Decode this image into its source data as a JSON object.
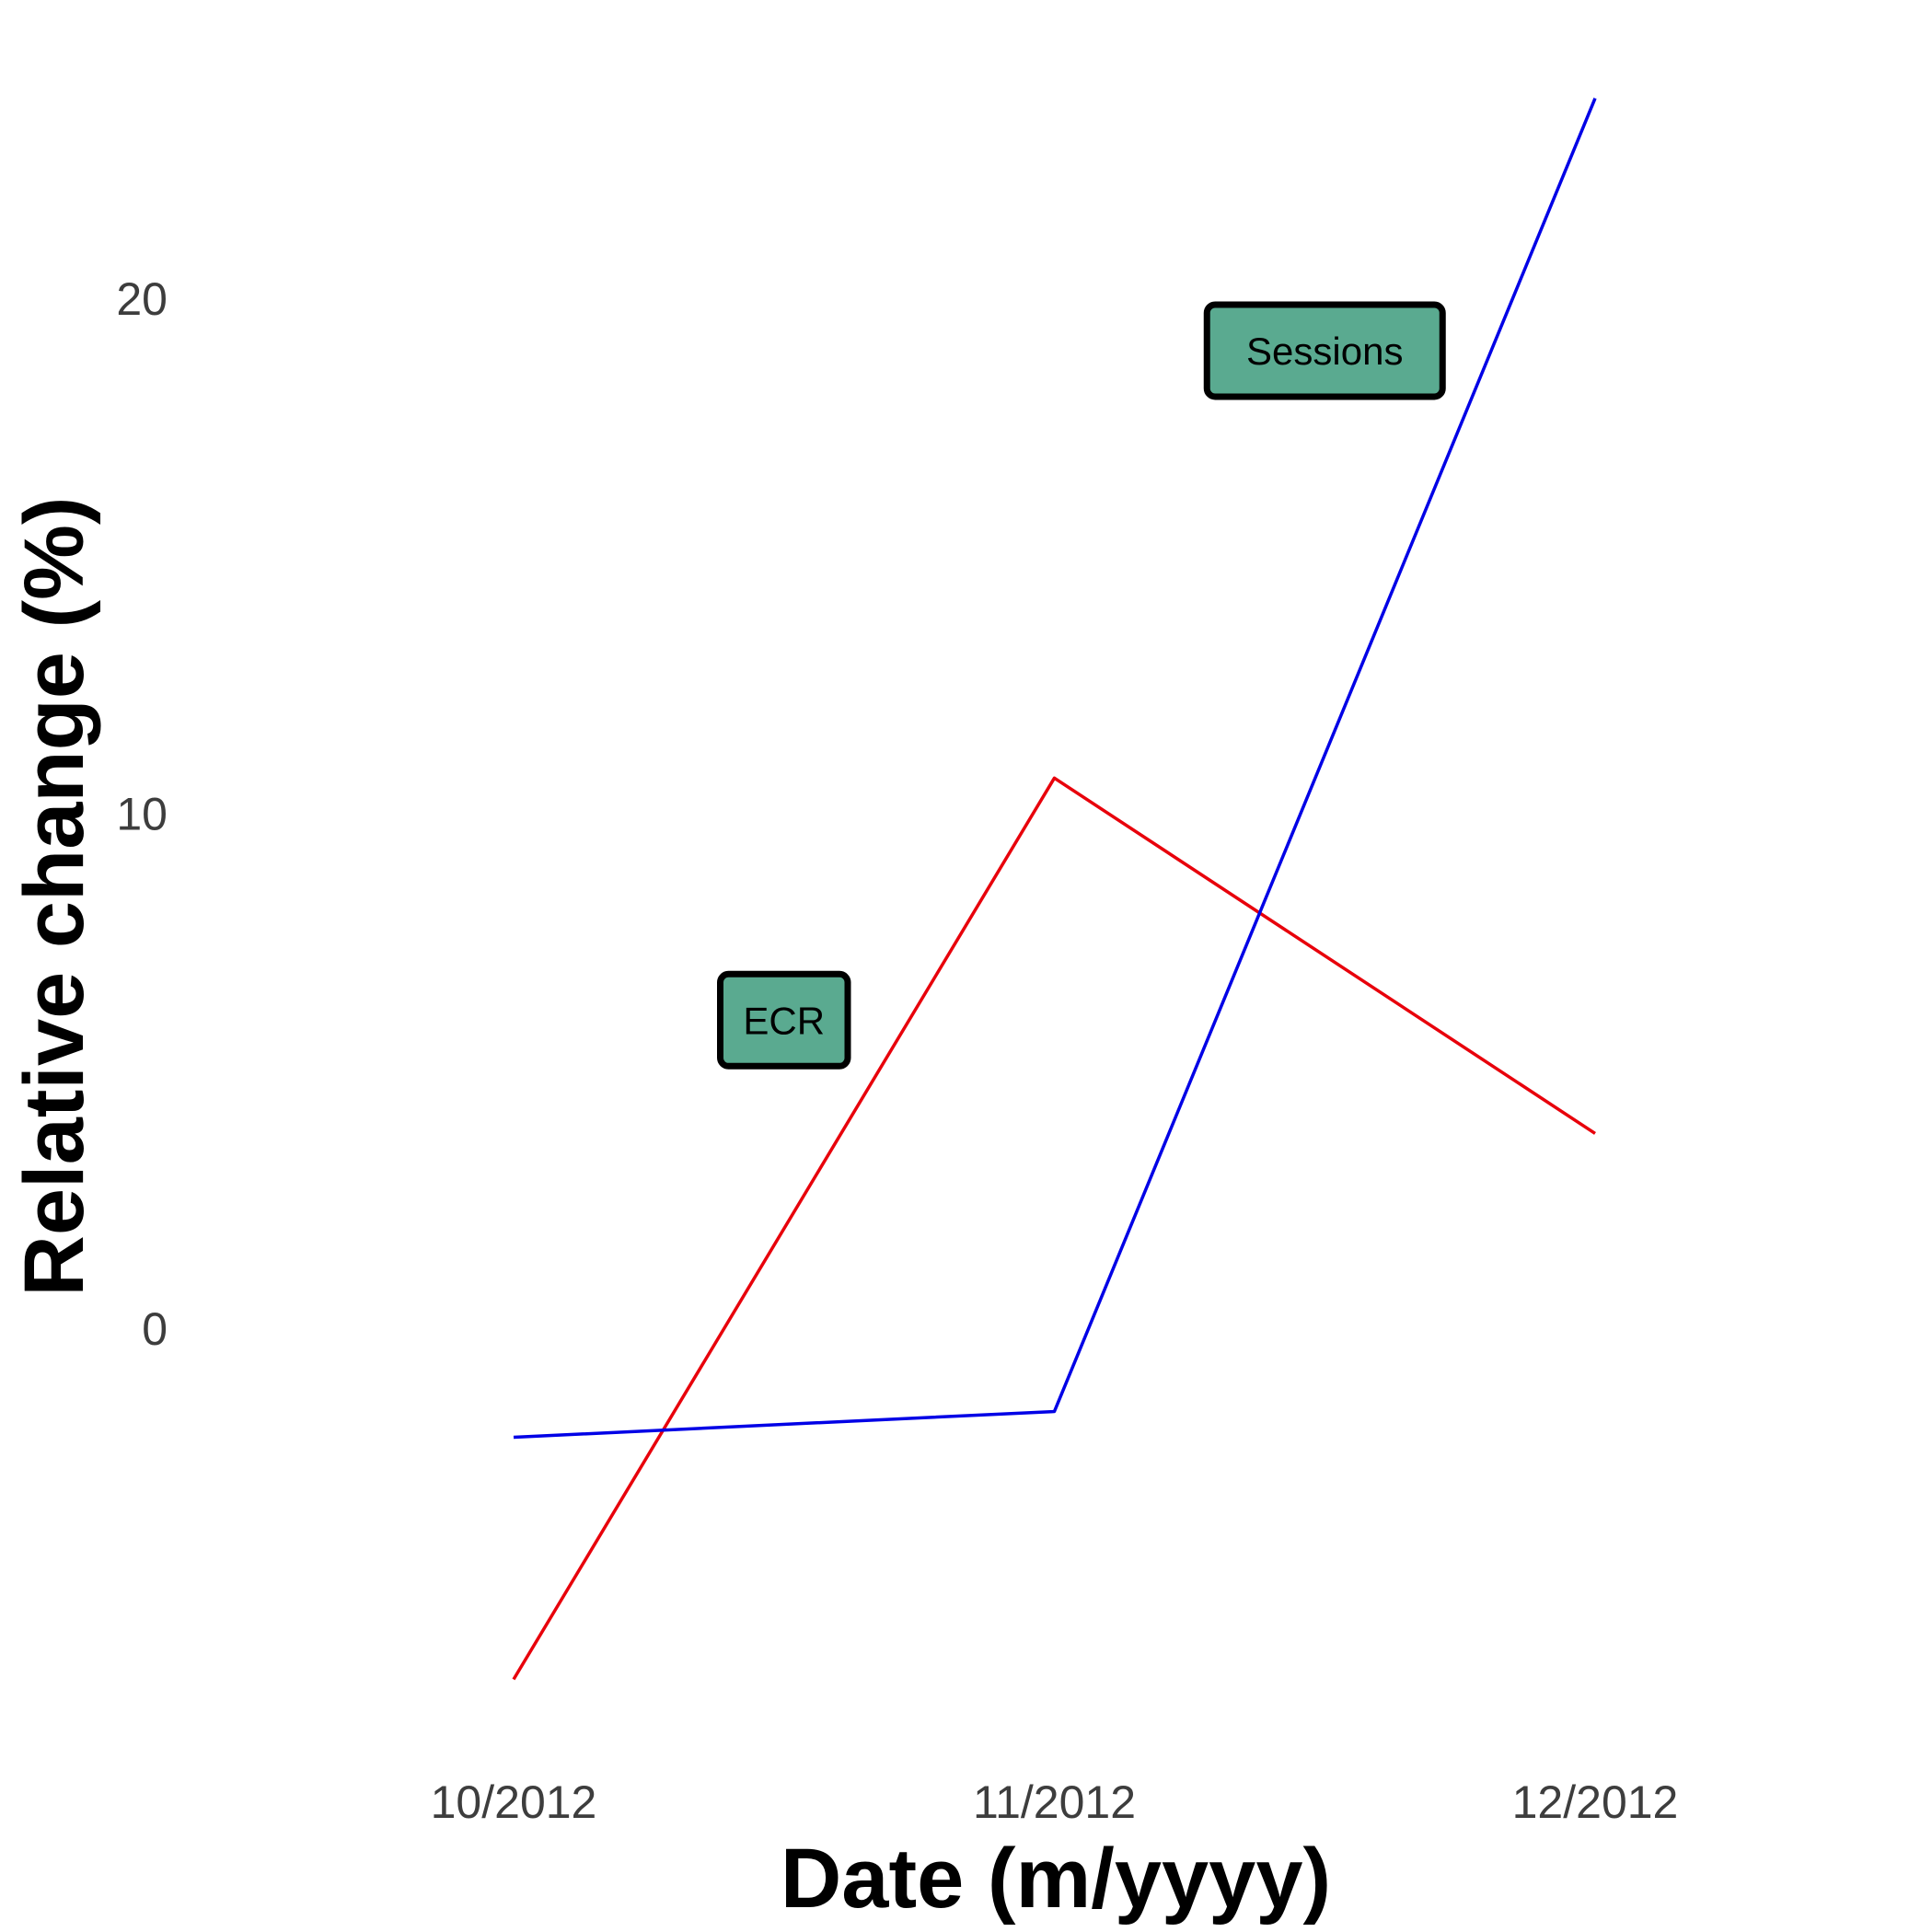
{
  "chart_data": {
    "type": "line",
    "xlabel": "Date (m/yyyy)",
    "ylabel": "Relative change (%)",
    "categories": [
      "10/2012",
      "11/2012",
      "12/2012"
    ],
    "yticks": [
      0,
      10,
      20
    ],
    "ylim": [
      -7.5,
      24.5
    ],
    "grid": false,
    "legend": "none",
    "series": [
      {
        "key": "ecr",
        "color": "#e8000b",
        "values": [
          -6.8,
          10.7,
          3.8
        ]
      },
      {
        "key": "sessions",
        "color": "#0000e6",
        "values": [
          -2.1,
          -1.6,
          23.9
        ]
      }
    ],
    "annotations": [
      {
        "key": "ecr",
        "text": "ECR",
        "x_between": [
          "10/2012",
          "11/2012"
        ],
        "x_fraction": 0.5,
        "y": 6.0
      },
      {
        "key": "sessions",
        "text": "Sessions",
        "x_between": [
          "11/2012",
          "12/2012"
        ],
        "x_fraction": 0.5,
        "y": 19.0
      }
    ],
    "annotation_fill": "#5aaa90"
  }
}
